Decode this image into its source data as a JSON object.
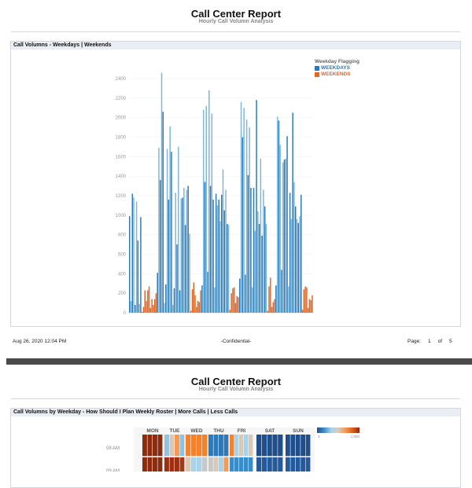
{
  "page1": {
    "title": "Call Center Report",
    "subtitle": "Hourly Call Volumn Analysis",
    "panel_title": "Call Volumns - Weekdays | Weekends",
    "footer": {
      "date": "Aug 26, 2020 12:04 PM",
      "center": "-Confidential-",
      "page_label": "Page:",
      "page": "1",
      "of_label": "of",
      "total": "5"
    }
  },
  "page2": {
    "title": "Call Center Report",
    "subtitle": "Hourly Call Volumn Analysis",
    "panel_title": "Call Volumns by Weekday - How Should I Plan Weekly Roster | More Calls | Less Calls"
  },
  "chart_data": [
    {
      "type": "bar",
      "title": "",
      "ylim": [
        0,
        2450
      ],
      "yticks": [
        0,
        200,
        400,
        600,
        800,
        1000,
        1200,
        1400,
        1600,
        1800,
        2000,
        2200,
        2400
      ],
      "grid": true,
      "legend": {
        "title": "Weekday Flagging",
        "placement": "top-right"
      },
      "colors": {
        "WEEKDAYS": "#2a7ab5",
        "WEEKDAYS_light": "#7fb5d9",
        "WEEKENDS": "#d9692b"
      },
      "segments": [
        {
          "series": "WEEKDAYS",
          "values": [
            990,
            120,
            1220,
            1180,
            80,
            1140,
            740,
            90,
            980
          ]
        },
        {
          "series": "WEEKENDS",
          "values": [
            10,
            60,
            230,
            120,
            230,
            270,
            50,
            140,
            80,
            140,
            200
          ]
        },
        {
          "series": "WEEKDAYS",
          "values": [
            410,
            1690,
            1360,
            2460,
            2060,
            100,
            290,
            1680,
            1160,
            1910,
            1650,
            80,
            250,
            1230,
            700,
            1700,
            230,
            1170,
            1180,
            1280,
            900,
            1260,
            1300,
            810
          ]
        },
        {
          "series": "WEEKENDS",
          "values": [
            20,
            240,
            310,
            180,
            60,
            120,
            110,
            230
          ]
        },
        {
          "series": "WEEKDAYS",
          "values": [
            280,
            2080,
            1340,
            2120,
            420,
            2280,
            1300,
            2040,
            1160,
            260,
            1220,
            1100,
            1160,
            940,
            1210,
            1470,
            1050,
            1260,
            910,
            900
          ]
        },
        {
          "series": "WEEKENDS",
          "values": [
            30,
            200,
            250,
            260,
            100,
            170,
            160
          ]
        },
        {
          "series": "WEEKDAYS",
          "values": [
            350,
            2160,
            1800,
            2100,
            390,
            1980,
            1410,
            1900,
            1280,
            260,
            1280,
            840,
            2180,
            1040,
            910,
            1580,
            790,
            1260,
            1090,
            910
          ]
        },
        {
          "series": "WEEKENDS",
          "values": [
            20,
            270,
            360,
            60,
            110,
            140
          ]
        },
        {
          "series": "WEEKDAYS",
          "values": [
            280,
            2010,
            1970,
            1720,
            440,
            1540,
            1570,
            1580,
            1810,
            270,
            1230,
            960,
            2050,
            1340,
            1090,
            960,
            920,
            990,
            1210
          ]
        },
        {
          "series": "WEEKENDS",
          "values": [
            30,
            240,
            270,
            260,
            50,
            140,
            130,
            180
          ]
        }
      ]
    },
    {
      "type": "heatmap",
      "title": "",
      "columns": [
        "MON",
        "TUE",
        "WED",
        "THU",
        "FRI",
        "SAT",
        "SUN"
      ],
      "rows": [
        "08 AM",
        "09 AM"
      ],
      "color_scale": {
        "min_label": "3",
        "max_label": "1,800",
        "colors": [
          "#1f4e8a",
          "#3a8cc8",
          "#a9d3ea",
          "#d9cbbd",
          "#f59a50",
          "#e0601a",
          "#8b2c0e"
        ]
      },
      "cells": [
        [
          [
            "#8b2c0e",
            "#8b2c0e",
            "#8b2c0e",
            "#8b2c0e"
          ],
          [
            "#8fc3e0",
            "#d8c8b8",
            "#f59a50",
            "#8fc3e0"
          ],
          [
            "#f5822a",
            "#f5822a",
            "#f5822a",
            "#f5822a"
          ],
          [
            "#2e7ab8",
            "#2e7ab8",
            "#2e7ab8",
            "#2e7ab8"
          ],
          [
            "#f5822a",
            "#a9d3ea",
            "#d8c8b8",
            "#a9d3ea",
            "#d8c8b8"
          ],
          [
            "#1f4e8a",
            "#1f4e8a",
            "#1f4e8a",
            "#1f4e8a",
            "#1f4e8a"
          ],
          [
            "#1f4e8a",
            "#1f4e8a",
            "#1f4e8a",
            "#1f4e8a",
            "#1f4e8a"
          ]
        ],
        [
          [
            "#8b2c0e",
            "#8b2c0e",
            "#8b2c0e",
            "#8b2c0e"
          ],
          [
            "#9c3010",
            "#9c3010",
            "#9c3010",
            "#a83a12"
          ],
          [
            "#d8c8b8",
            "#a9d3ea",
            "#a9d3ea",
            "#c8c8c8"
          ],
          [
            "#c8c8c8",
            "#d8c8b8",
            "#a9d3ea",
            "#f59a50"
          ],
          [
            "#3a8cc8",
            "#3a8cc8",
            "#3a8cc8",
            "#3a8cc8",
            "#3a8cc8"
          ],
          [
            "#245a9a",
            "#245a9a",
            "#245a9a",
            "#245a9a",
            "#245a9a"
          ],
          [
            "#245a9a",
            "#245a9a",
            "#245a9a",
            "#245a9a",
            "#245a9a"
          ]
        ]
      ]
    }
  ]
}
